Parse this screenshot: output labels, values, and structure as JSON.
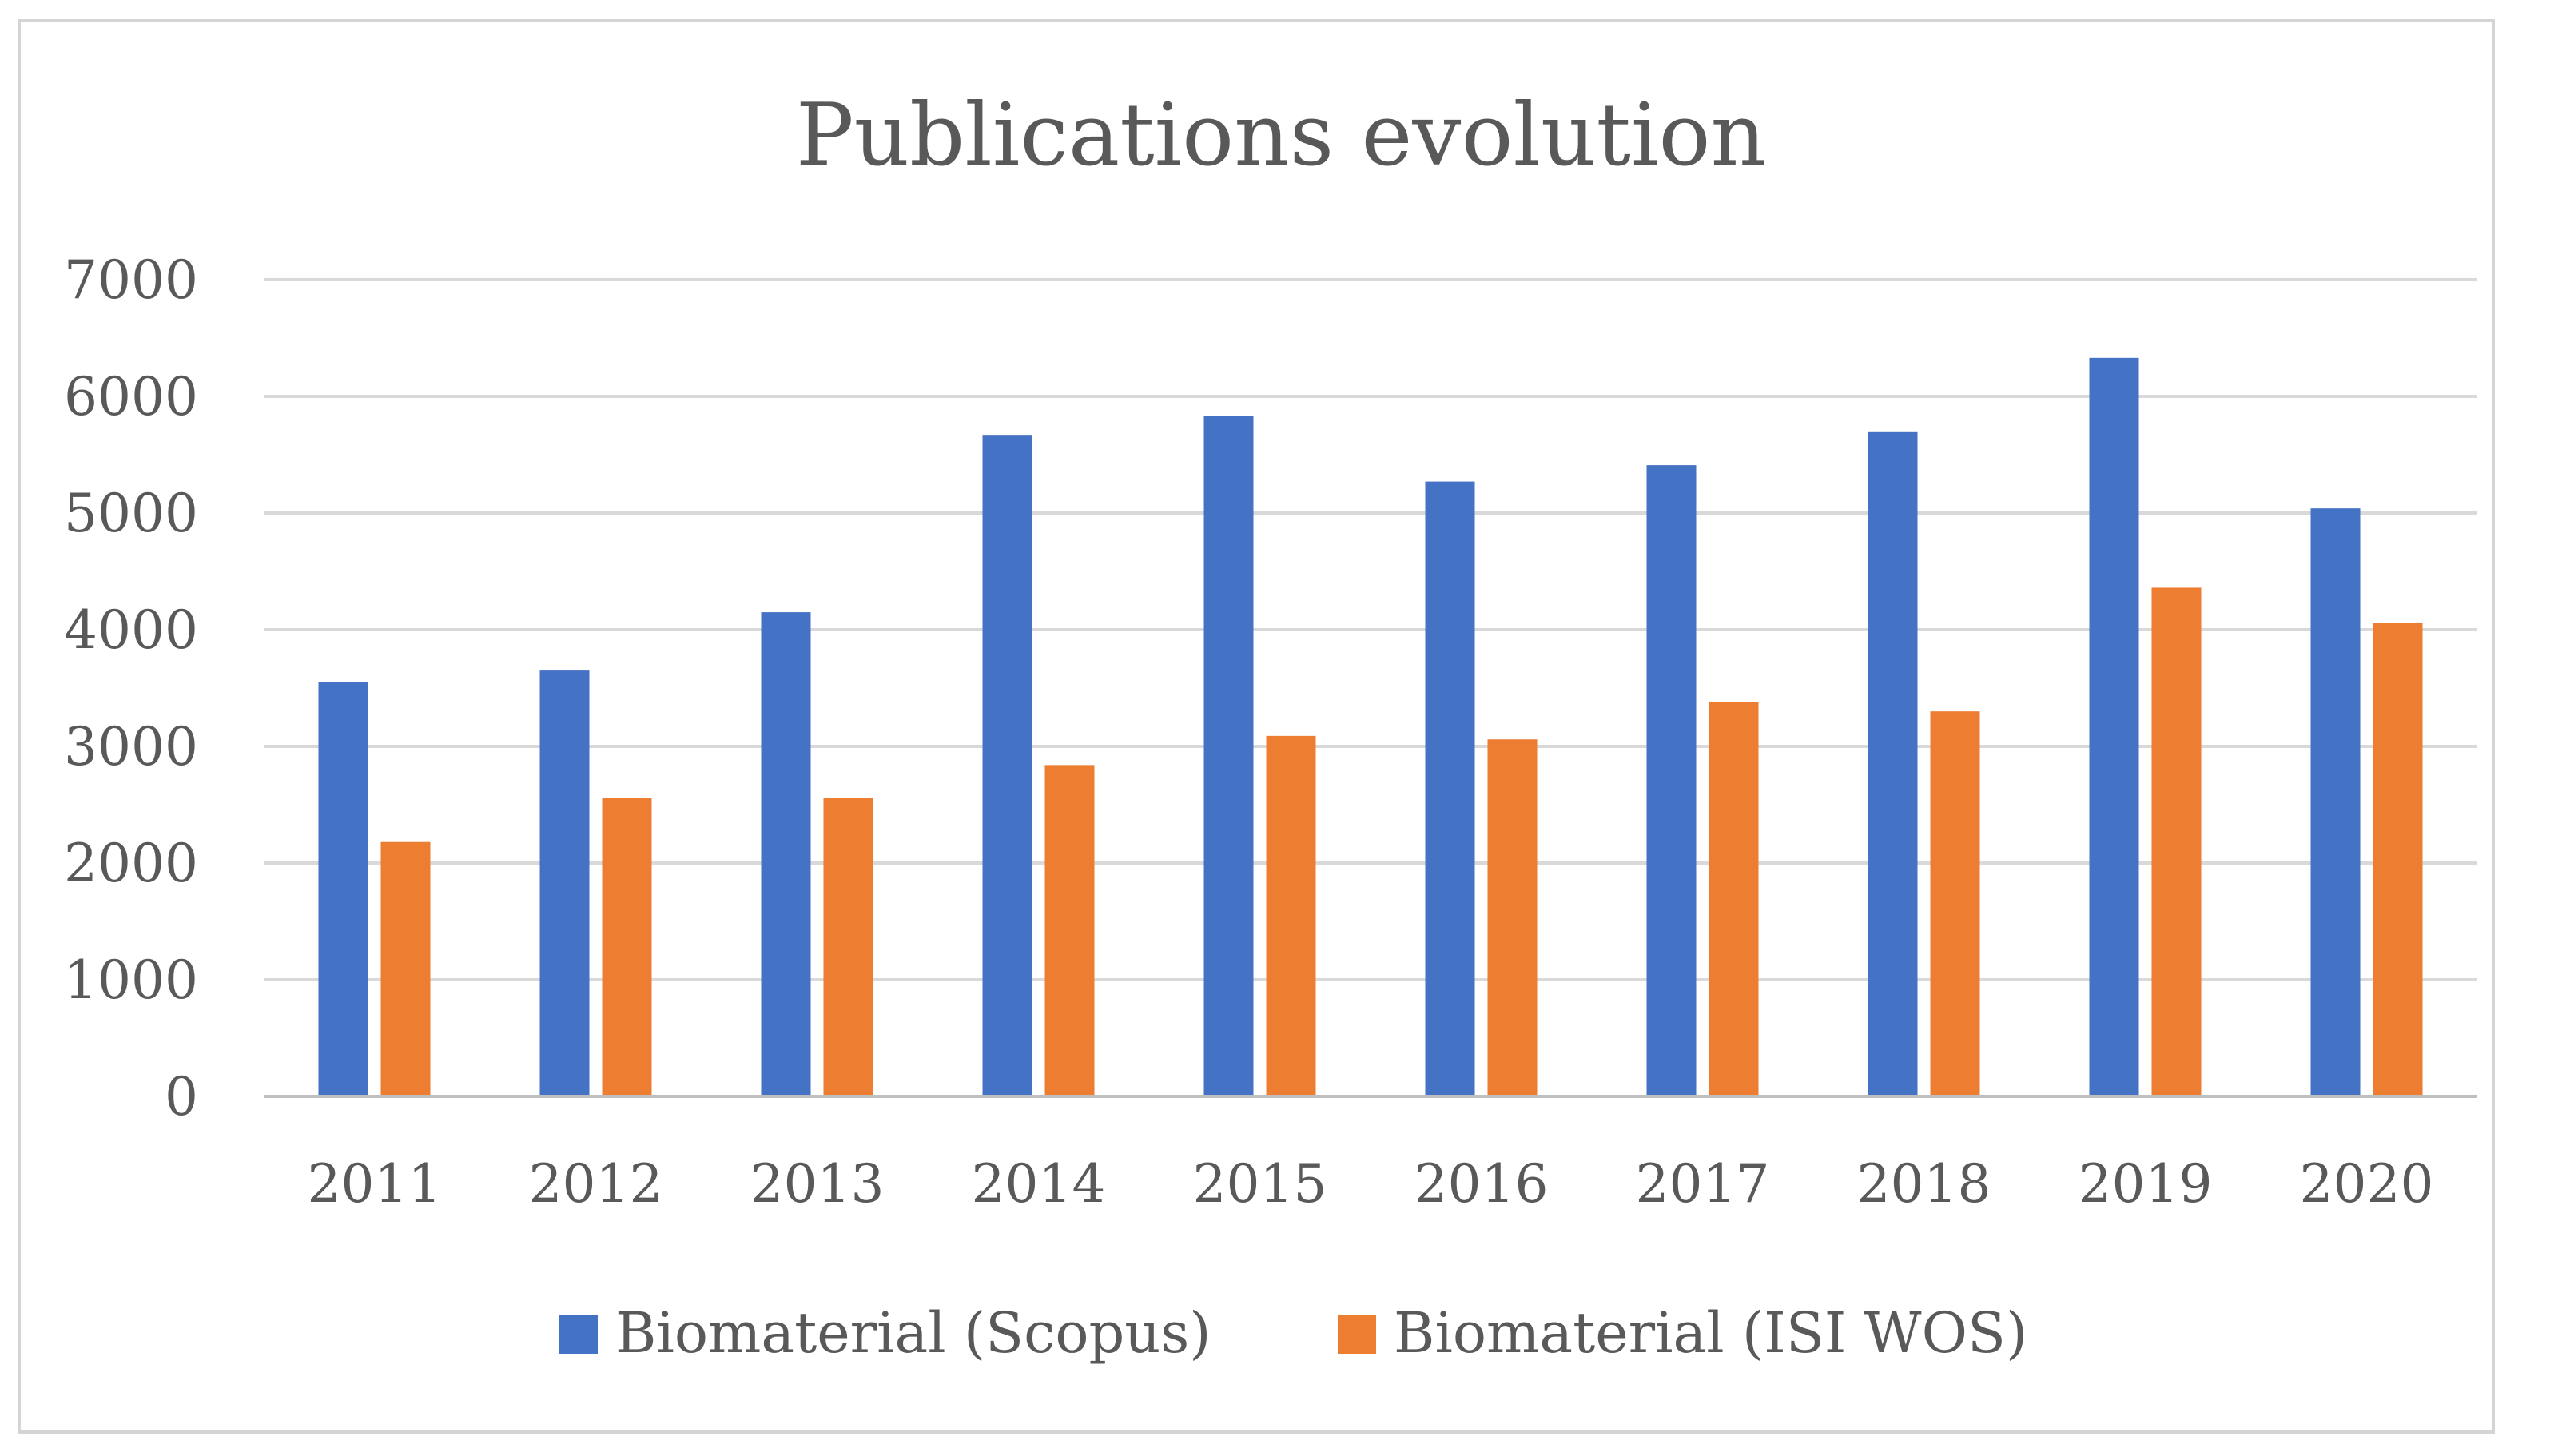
{
  "chart_data": {
    "type": "bar",
    "title": "Publications evolution",
    "xlabel": "",
    "ylabel": "",
    "ylim": [
      0,
      7000
    ],
    "yticks": [
      0,
      1000,
      2000,
      3000,
      4000,
      5000,
      6000,
      7000
    ],
    "grid": true,
    "legend_position": "bottom",
    "categories": [
      "2011",
      "2012",
      "2013",
      "2014",
      "2015",
      "2016",
      "2017",
      "2018",
      "2019",
      "2020"
    ],
    "series": [
      {
        "name": "Biomaterial (Scopus)",
        "color": "#4472c4",
        "values": [
          3550,
          3650,
          4150,
          5670,
          5830,
          5270,
          5410,
          5700,
          6330,
          5040
        ]
      },
      {
        "name": "Biomaterial (ISI WOS)",
        "color": "#ed7d31",
        "values": [
          2180,
          2560,
          2560,
          2840,
          3090,
          3060,
          3380,
          3300,
          4360,
          4060
        ]
      }
    ]
  }
}
